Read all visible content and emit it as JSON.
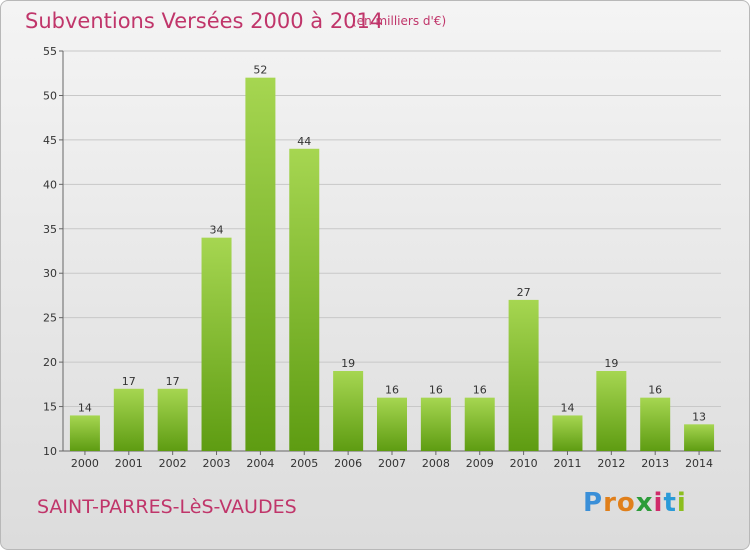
{
  "title": "Subventions Versées 2000 à 2014",
  "subtitle": "(en milliers d'€)",
  "commune": "SAINT-PARRES-LèS-VAUDES",
  "logo": {
    "letters": [
      "P",
      "r",
      "o",
      "x",
      "i",
      "t",
      "i"
    ],
    "colors": [
      "#3a8fd8",
      "#e07f1a",
      "#e07f1a",
      "#2c9c3a",
      "#d02a6a",
      "#2a9ad8",
      "#8cbe1e"
    ]
  },
  "colors": {
    "bar_top": "#a6d651",
    "bar_bottom": "#5e9c12",
    "accent": "#c0356a"
  },
  "chart_data": {
    "type": "bar",
    "categories": [
      "2000",
      "2001",
      "2002",
      "2003",
      "2004",
      "2005",
      "2006",
      "2007",
      "2008",
      "2009",
      "2010",
      "2011",
      "2012",
      "2013",
      "2014"
    ],
    "values": [
      14,
      17,
      17,
      34,
      52,
      44,
      19,
      16,
      16,
      16,
      27,
      14,
      19,
      16,
      13
    ],
    "ylim": [
      10,
      55
    ],
    "yticks": [
      10,
      15,
      20,
      25,
      30,
      35,
      40,
      45,
      50,
      55
    ],
    "grid": true
  }
}
